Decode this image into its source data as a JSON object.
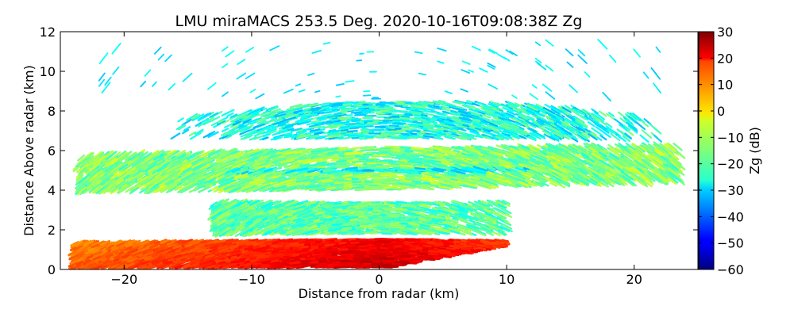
{
  "chart_data": {
    "type": "heatmap",
    "title": "LMU miraMACS 253.5 Deg. 2020-10-16T09:08:38Z  Zg",
    "xlabel": "Distance from radar (km)",
    "ylabel": "Distance Above radar  (km)",
    "xlim": [
      -25,
      25
    ],
    "ylim": [
      0,
      12
    ],
    "xticks": [
      -20,
      -10,
      0,
      10,
      20
    ],
    "yticks": [
      0,
      2,
      4,
      6,
      8,
      10,
      12
    ],
    "colorbar": {
      "label": "Zg (dB)",
      "range": [
        -60,
        30
      ],
      "ticks": [
        30,
        20,
        10,
        0,
        -10,
        -20,
        -30,
        -40,
        -50,
        -60
      ],
      "colormap": "jet"
    },
    "layers": [
      {
        "name": "surface-layer",
        "x": [
          -24,
          10
        ],
        "y_top": [
          1.4,
          1.6
        ],
        "zg": 15
      },
      {
        "name": "lower-cloud",
        "x": [
          -13,
          10
        ],
        "y": [
          1.8,
          3.4
        ],
        "zg": -18
      },
      {
        "name": "mid-cloud",
        "x": [
          -23.5,
          23.5
        ],
        "y": [
          4.0,
          6.2
        ],
        "zg": -15
      },
      {
        "name": "upper-cloud",
        "x": [
          -16,
          22
        ],
        "y": [
          6.6,
          8.6
        ],
        "zg": -24
      },
      {
        "name": "scattered-echoes",
        "x": [
          -22,
          22
        ],
        "y": [
          8.6,
          11.5
        ],
        "zg": -28
      }
    ]
  }
}
